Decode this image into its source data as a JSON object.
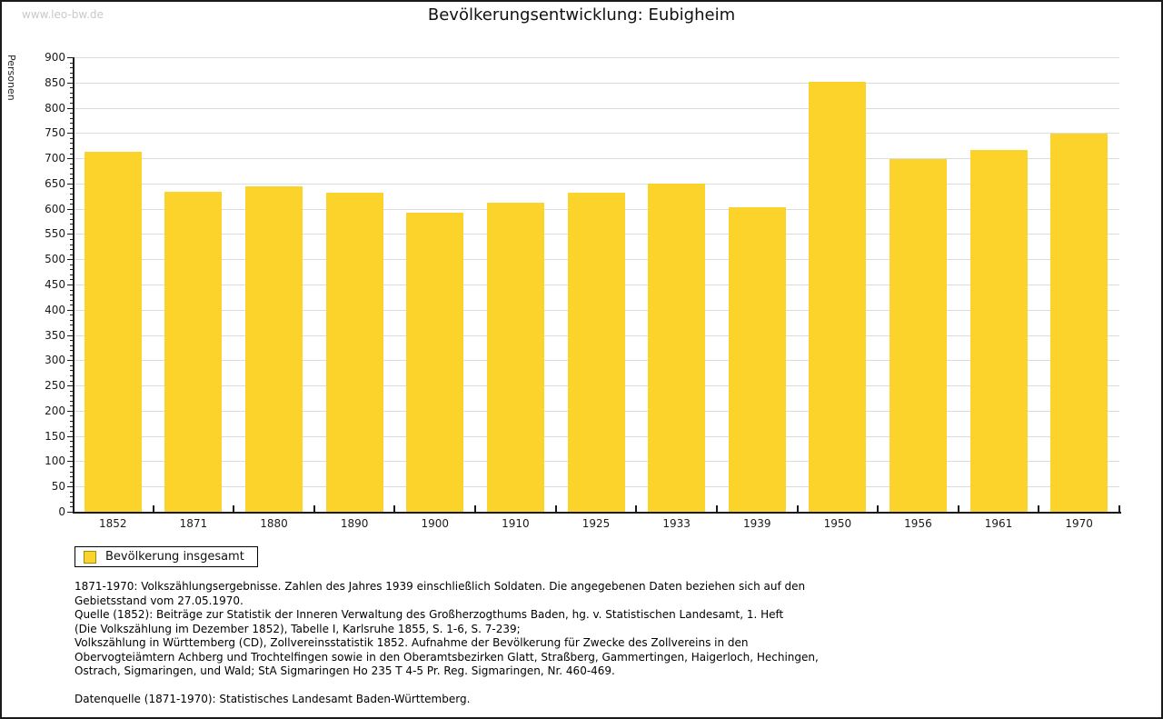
{
  "watermark": "www.leo-bw.de",
  "title": "Bevölkerungsentwicklung: Eubigheim",
  "chart_data": {
    "type": "bar",
    "title": "Bevölkerungsentwicklung: Eubigheim",
    "xlabel": "",
    "ylabel": "Personen",
    "categories": [
      "1852",
      "1871",
      "1880",
      "1890",
      "1900",
      "1910",
      "1925",
      "1933",
      "1939",
      "1950",
      "1956",
      "1961",
      "1970"
    ],
    "values": [
      712,
      633,
      644,
      632,
      593,
      612,
      632,
      650,
      603,
      852,
      699,
      716,
      749
    ],
    "series": [
      {
        "name": "Bevölkerung insgesamt",
        "values": [
          712,
          633,
          644,
          632,
          593,
          612,
          632,
          650,
          603,
          852,
          699,
          716,
          749
        ]
      }
    ],
    "ylim": [
      0,
      900
    ],
    "ytick_step": 50,
    "minor_tick_step": 10,
    "grid": true,
    "legend_entries": [
      "Bevölkerung insgesamt"
    ],
    "legend_position": "bottom-left",
    "bar_color": "#fcd32b",
    "grid_color": "#dcdcdc",
    "axis_color": "#1a1a1a"
  },
  "legend": {
    "label": "Bevölkerung insgesamt",
    "swatch_color": "#fcd32b",
    "swatch_border_color": "#a08b12"
  },
  "footer": {
    "lines": [
      "1871-1970: Volkszählungsergebnisse. Zahlen des Jahres 1939 einschließlich Soldaten. Die angegebenen Daten beziehen sich auf den",
      "Gebietsstand vom 27.05.1970.",
      "Quelle (1852): Beiträge zur Statistik der Inneren Verwaltung des Großherzogthums Baden, hg. v. Statistischen Landesamt, 1. Heft",
      "(Die Volkszählung im Dezember 1852), Tabelle I, Karlsruhe 1855, S. 1-6, S. 7-239;",
      "Volkszählung in Württemberg (CD), Zollvereinsstatistik 1852. Aufnahme der Bevölkerung für Zwecke des Zollvereins in den",
      "Obervogteiämtern Achberg und Trochtelfingen sowie in den Oberamtsbezirken Glatt, Straßberg, Gammertingen, Haigerloch, Hechingen,",
      "Ostrach, Sigmaringen, und Wald; StA Sigmaringen Ho 235 T 4-5 Pr. Reg. Sigmaringen, Nr. 460-469."
    ],
    "datasource": "Datenquelle (1871-1970): Statistisches Landesamt Baden-Württemberg."
  }
}
